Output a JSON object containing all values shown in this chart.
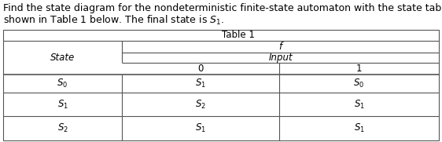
{
  "title_line1": "Find the state diagram for the nondeterministic finite-state automaton with the state table",
  "title_line2": "shown in Table 1 below. The final state is $S_1$.",
  "table_label": "Table 1",
  "header_f": "f",
  "header_input": "Input",
  "col0_header": "0",
  "col1_header": "1",
  "row_header": "State",
  "rows": [
    {
      "state": "$S_0$",
      "col0": "$S_1$",
      "col1": "$S_0$"
    },
    {
      "state": "$S_1$",
      "col0": "$S_2$",
      "col1": "$S_1$"
    },
    {
      "state": "$S_2$",
      "col0": "$S_1$",
      "col1": "$S_1$"
    }
  ],
  "bg_color": "#ffffff",
  "text_color": "#000000",
  "border_color": "#555555",
  "title_fontsize": 9.0,
  "table_fontsize": 8.5,
  "fig_width": 5.62,
  "fig_height": 1.81,
  "dpi": 100
}
